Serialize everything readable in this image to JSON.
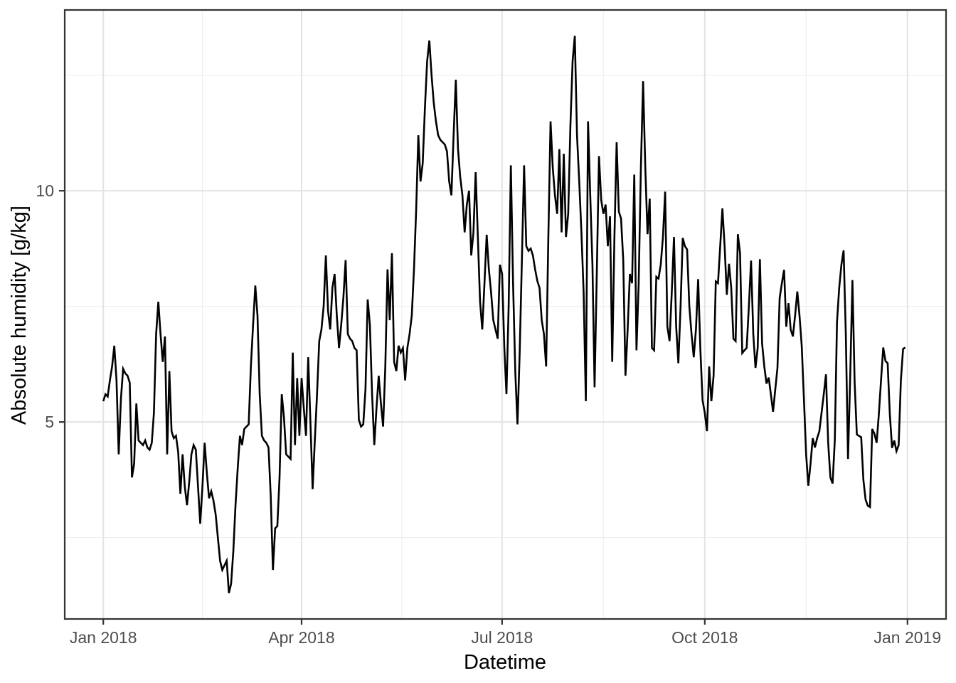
{
  "chart_data": {
    "type": "line",
    "title": "",
    "xlabel": "Datetime",
    "ylabel": "Absolute humidity [g/kg]",
    "legend": null,
    "grid": "major_and_minor",
    "x_axis": {
      "kind": "time",
      "tick_labels": [
        "Jan 2018",
        "Apr 2018",
        "Jul 2018",
        "Oct 2018",
        "Jan 2019"
      ],
      "tick_days": [
        0,
        90,
        181,
        273,
        365
      ],
      "minor_grid_days": [
        45,
        135.5,
        227,
        319
      ],
      "range_days": [
        -17.5,
        382.5
      ]
    },
    "y_axis": {
      "tick_labels": [
        "5",
        "10"
      ],
      "tick_values": [
        5,
        10
      ],
      "minor_grid_values": [
        2.5,
        7.5,
        12.5
      ],
      "range": [
        0.74,
        13.91
      ]
    },
    "series": [
      {
        "name": "absolute-humidity",
        "color": "#000000",
        "day_start": 0,
        "day_step": 1,
        "values": [
          5.45,
          5.6,
          5.55,
          5.9,
          6.2,
          6.65,
          5.9,
          4.3,
          5.5,
          6.15,
          6.05,
          6.0,
          5.85,
          3.8,
          4.1,
          5.4,
          4.6,
          4.55,
          4.5,
          4.6,
          4.45,
          4.4,
          4.55,
          5.2,
          6.9,
          7.6,
          6.9,
          6.3,
          6.85,
          4.3,
          6.1,
          4.8,
          4.65,
          4.7,
          4.35,
          3.45,
          4.3,
          3.6,
          3.2,
          3.7,
          4.3,
          4.5,
          4.4,
          3.6,
          2.8,
          3.6,
          4.55,
          3.9,
          3.35,
          3.5,
          3.3,
          3.0,
          2.5,
          2.0,
          1.8,
          1.9,
          2.0,
          1.3,
          1.5,
          2.2,
          3.2,
          4.0,
          4.7,
          4.5,
          4.85,
          4.9,
          4.95,
          6.2,
          7.1,
          7.95,
          7.3,
          5.6,
          4.7,
          4.6,
          4.55,
          4.45,
          3.4,
          1.8,
          2.7,
          2.75,
          3.8,
          5.6,
          5.1,
          4.3,
          4.25,
          4.2,
          6.5,
          4.5,
          5.95,
          4.7,
          5.95,
          5.3,
          4.7,
          6.4,
          5.0,
          3.55,
          4.6,
          5.6,
          6.75,
          7.0,
          7.5,
          8.6,
          7.4,
          7.0,
          7.9,
          8.2,
          7.3,
          6.6,
          7.1,
          7.7,
          8.5,
          6.9,
          6.8,
          6.75,
          6.6,
          6.55,
          5.05,
          4.9,
          4.95,
          5.7,
          7.65,
          7.1,
          5.6,
          4.5,
          5.3,
          6.0,
          5.4,
          4.9,
          6.2,
          8.3,
          7.2,
          8.65,
          6.3,
          6.1,
          6.65,
          6.5,
          6.6,
          5.9,
          6.6,
          6.9,
          7.3,
          8.3,
          9.6,
          11.2,
          10.2,
          10.6,
          11.8,
          12.8,
          13.25,
          12.5,
          11.9,
          11.5,
          11.2,
          11.1,
          11.05,
          11.0,
          10.85,
          10.2,
          9.9,
          11.2,
          12.4,
          10.9,
          10.3,
          9.9,
          9.1,
          9.7,
          10.0,
          8.6,
          9.1,
          10.4,
          9.0,
          7.6,
          7.0,
          8.0,
          9.05,
          8.3,
          7.8,
          7.2,
          7.0,
          6.8,
          8.4,
          8.2,
          6.6,
          5.6,
          7.5,
          10.55,
          8.0,
          6.1,
          4.95,
          6.5,
          8.5,
          10.55,
          8.8,
          8.7,
          8.75,
          8.6,
          8.3,
          8.05,
          7.9,
          7.2,
          6.9,
          6.2,
          9.0,
          11.5,
          10.5,
          9.9,
          9.5,
          10.9,
          9.1,
          10.8,
          9.0,
          9.5,
          11.4,
          12.8,
          13.35,
          11.2,
          10.2,
          9.1,
          7.8,
          5.45,
          11.5,
          9.9,
          8.4,
          5.75,
          8.2,
          10.75,
          9.8,
          9.5,
          9.7,
          8.8,
          9.45,
          6.3,
          9.0,
          11.05,
          9.55,
          9.4,
          8.5,
          6.0,
          7.0,
          8.2,
          8.0,
          10.35,
          6.55,
          8.0,
          10.5,
          12.37,
          10.5,
          9.06,
          9.83,
          6.6,
          6.55,
          8.14,
          8.1,
          8.4,
          9.0,
          9.98,
          7.06,
          6.75,
          7.8,
          9.0,
          7.06,
          6.27,
          7.5,
          8.98,
          8.8,
          8.73,
          7.5,
          6.9,
          6.4,
          7.0,
          8.09,
          6.57,
          5.47,
          5.2,
          4.8,
          6.2,
          5.45,
          6.0,
          8.04,
          8.0,
          8.8,
          9.62,
          8.8,
          7.75,
          8.42,
          7.9,
          6.8,
          6.75,
          9.06,
          8.65,
          6.49,
          6.55,
          6.6,
          7.5,
          8.49,
          6.9,
          6.17,
          6.6,
          8.52,
          6.7,
          6.2,
          5.83,
          5.96,
          5.6,
          5.22,
          5.7,
          6.17,
          7.68,
          8.0,
          8.29,
          7.06,
          7.57,
          7.0,
          6.85,
          7.3,
          7.82,
          7.3,
          6.65,
          5.5,
          4.3,
          3.62,
          4.1,
          4.65,
          4.45,
          4.65,
          4.8,
          5.2,
          5.6,
          6.03,
          4.55,
          3.8,
          3.67,
          4.6,
          7.16,
          7.9,
          8.4,
          8.71,
          6.9,
          4.2,
          6.0,
          8.07,
          5.85,
          4.73,
          4.7,
          4.67,
          3.75,
          3.32,
          3.19,
          3.16,
          4.85,
          4.75,
          4.55,
          5.16,
          5.9,
          6.61,
          6.32,
          6.27,
          5.16,
          4.44,
          4.6,
          4.37,
          4.5,
          5.9,
          6.58,
          6.61
        ]
      }
    ]
  },
  "style": {
    "background": "#ffffff",
    "panel_background": "#ffffff",
    "panel_border": "#333333",
    "grid_major": "#e3e3e3",
    "grid_minor": "#efefef",
    "line_color": "#000000",
    "line_width": 2.6,
    "tick_color": "#333333",
    "tick_label_color": "#4d4d4d",
    "axis_title_color": "#000000"
  }
}
